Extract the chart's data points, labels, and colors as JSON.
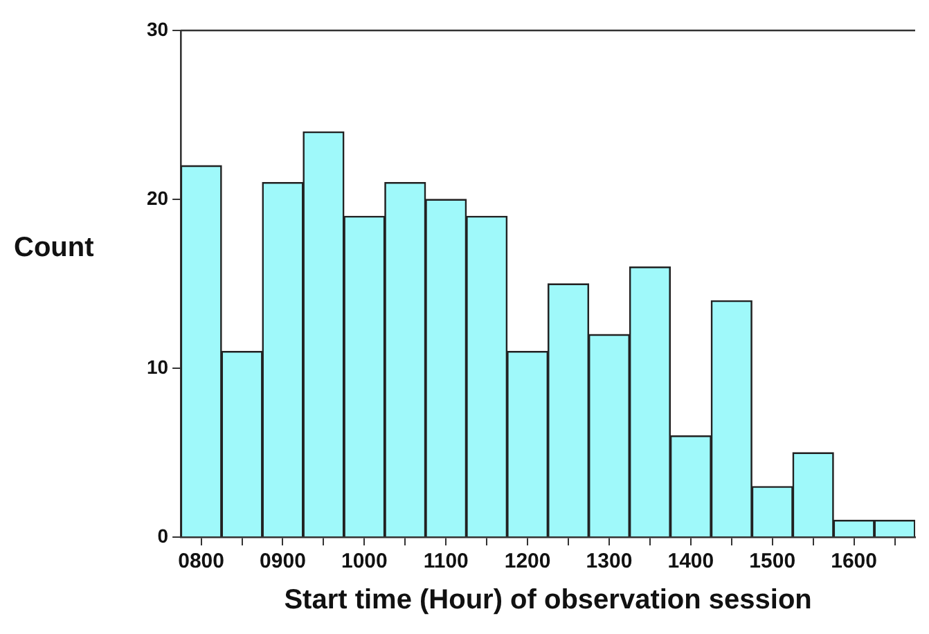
{
  "chart_data": {
    "type": "bar",
    "xlabel": "Start time (Hour) of observation session",
    "ylabel": "Count",
    "categories": [
      "0800",
      null,
      "0900",
      null,
      "1000",
      null,
      "1100",
      null,
      "1200",
      null,
      "1300",
      null,
      "1400",
      null,
      "1500",
      null,
      "1600",
      null
    ],
    "values": [
      22,
      11,
      21,
      24,
      19,
      21,
      20,
      19,
      11,
      15,
      12,
      16,
      6,
      14,
      3,
      5,
      1,
      1
    ],
    "color": "#9ff9fa",
    "ylim": [
      0,
      30
    ],
    "yticks": [
      0,
      10,
      20,
      30
    ],
    "grid": false,
    "legend": false
  }
}
